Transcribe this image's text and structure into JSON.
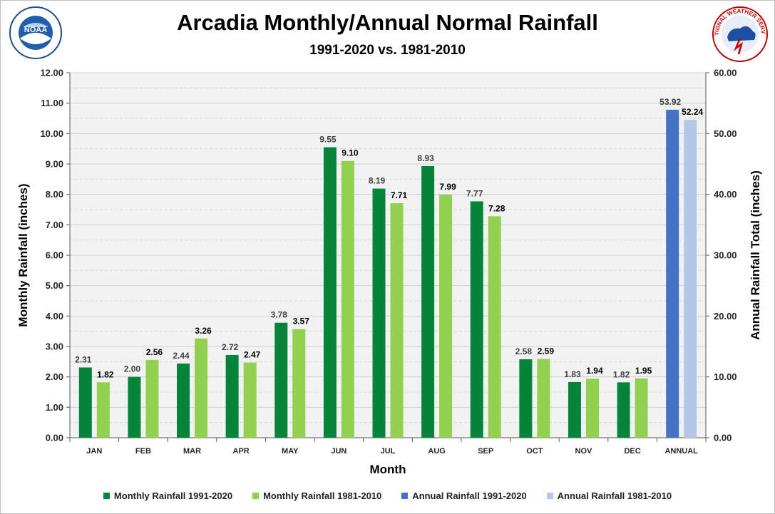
{
  "header": {
    "title": "Arcadia Monthly/Annual Normal Rainfall",
    "subtitle": "1991-2020 vs. 1981-2010",
    "left_logo": "noaa-logo",
    "right_logo": "nws-logo",
    "left_logo_text": "NOAA",
    "right_logo_text": "NATIONAL WEATHER SERVICE"
  },
  "colors": {
    "monthly_2020": "#05843a",
    "monthly_2010": "#92d050",
    "annual_2020": "#4472c4",
    "annual_2010": "#b4c7e7",
    "grid": "#d9d9d9",
    "plot_bg": "#f2f2f2"
  },
  "chart_data": {
    "type": "bar",
    "title": "Arcadia Monthly/Annual Normal Rainfall",
    "subtitle": "1991-2020 vs. 1981-2010",
    "xlabel": "Month",
    "ylabel": "Monthly Rainfall (inches)",
    "y2label": "Annual Rainfall Total (inches)",
    "ylim": [
      0,
      12
    ],
    "y2lim": [
      0,
      60
    ],
    "yticks": [
      "0.00",
      "1.00",
      "2.00",
      "3.00",
      "4.00",
      "5.00",
      "6.00",
      "7.00",
      "8.00",
      "9.00",
      "10.00",
      "11.00",
      "12.00"
    ],
    "y2ticks": [
      "0.00",
      "10.00",
      "20.00",
      "30.00",
      "40.00",
      "50.00",
      "60.00"
    ],
    "categories": [
      "JAN",
      "FEB",
      "MAR",
      "APR",
      "MAY",
      "JUN",
      "JUL",
      "AUG",
      "SEP",
      "OCT",
      "NOV",
      "DEC",
      "ANNUAL"
    ],
    "series": [
      {
        "name": "Monthly Rainfall 1991-2020",
        "axis": "left",
        "values": [
          2.31,
          2.0,
          2.44,
          2.72,
          3.78,
          9.55,
          8.19,
          8.93,
          7.77,
          2.58,
          1.83,
          1.82,
          null
        ],
        "labels": [
          "2.31",
          "2.00",
          "2.44",
          "2.72",
          "3.78",
          "9.55",
          "8.19",
          "8.93",
          "7.77",
          "2.58",
          "1.83",
          "1.82",
          ""
        ]
      },
      {
        "name": "Monthly Rainfall 1981-2010",
        "axis": "left",
        "values": [
          1.82,
          2.56,
          3.26,
          2.47,
          3.57,
          9.1,
          7.71,
          7.99,
          7.28,
          2.59,
          1.94,
          1.95,
          null
        ],
        "labels": [
          "1.82",
          "2.56",
          "3.26",
          "2.47",
          "3.57",
          "9.10",
          "7.71",
          "7.99",
          "7.28",
          "2.59",
          "1.94",
          "1.95",
          ""
        ]
      },
      {
        "name": "Annual Rainfall 1991-2020",
        "axis": "right",
        "values": [
          null,
          null,
          null,
          null,
          null,
          null,
          null,
          null,
          null,
          null,
          null,
          null,
          53.92
        ],
        "labels": [
          "",
          "",
          "",
          "",
          "",
          "",
          "",
          "",
          "",
          "",
          "",
          "",
          "53.92"
        ]
      },
      {
        "name": "Annual Rainfall 1981-2010",
        "axis": "right",
        "values": [
          null,
          null,
          null,
          null,
          null,
          null,
          null,
          null,
          null,
          null,
          null,
          null,
          52.24
        ],
        "labels": [
          "",
          "",
          "",
          "",
          "",
          "",
          "",
          "",
          "",
          "",
          "",
          "",
          "52.24"
        ]
      }
    ],
    "legend_position": "bottom"
  }
}
